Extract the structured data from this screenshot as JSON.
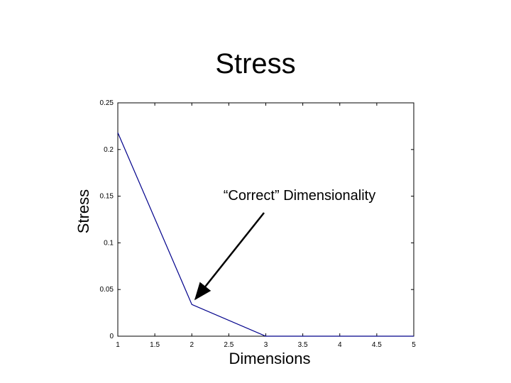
{
  "chart_data": {
    "type": "line",
    "title": "Stress",
    "xlabel": "Dimensions",
    "ylabel": "Stress",
    "xlim": [
      1,
      5
    ],
    "ylim": [
      0,
      0.25
    ],
    "x_ticks": [
      1,
      1.5,
      2,
      2.5,
      3,
      3.5,
      4,
      4.5,
      5
    ],
    "x_tick_labels": [
      "1",
      "1.5",
      "2",
      "2.5",
      "3",
      "3.5",
      "4",
      "4.5",
      "5"
    ],
    "y_ticks": [
      0,
      0.05,
      0.1,
      0.15,
      0.2,
      0.25
    ],
    "y_tick_labels": [
      "0",
      "0.05",
      "0.1",
      "0.15",
      "0.2",
      "0.25"
    ],
    "grid": false,
    "series": [
      {
        "x": [
          1,
          2,
          3,
          4,
          5
        ],
        "values": [
          0.218,
          0.034,
          0.0,
          0.0,
          0.0
        ],
        "color": "#00008b"
      }
    ],
    "annotation": {
      "text": "“Correct” Dimensionality",
      "points_to": {
        "x": 2.05,
        "y": 0.04
      }
    }
  }
}
